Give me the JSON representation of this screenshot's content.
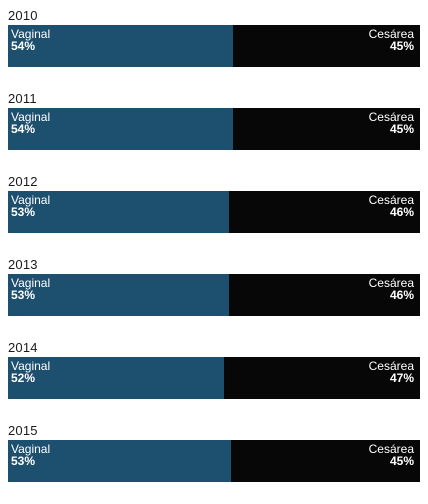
{
  "chart_data": {
    "type": "bar",
    "orientation": "horizontal-stacked",
    "categories": [
      "2010",
      "2011",
      "2012",
      "2013",
      "2014",
      "2015"
    ],
    "series": [
      {
        "name": "Vaginal",
        "values": [
          54,
          54,
          53,
          53,
          52,
          53
        ],
        "color": "#1d4f6e"
      },
      {
        "name": "Cesárea",
        "values": [
          45,
          45,
          46,
          46,
          47,
          45
        ],
        "color": "#070707"
      }
    ],
    "value_suffix": "%",
    "title": "",
    "xlabel": "",
    "ylabel": ""
  }
}
